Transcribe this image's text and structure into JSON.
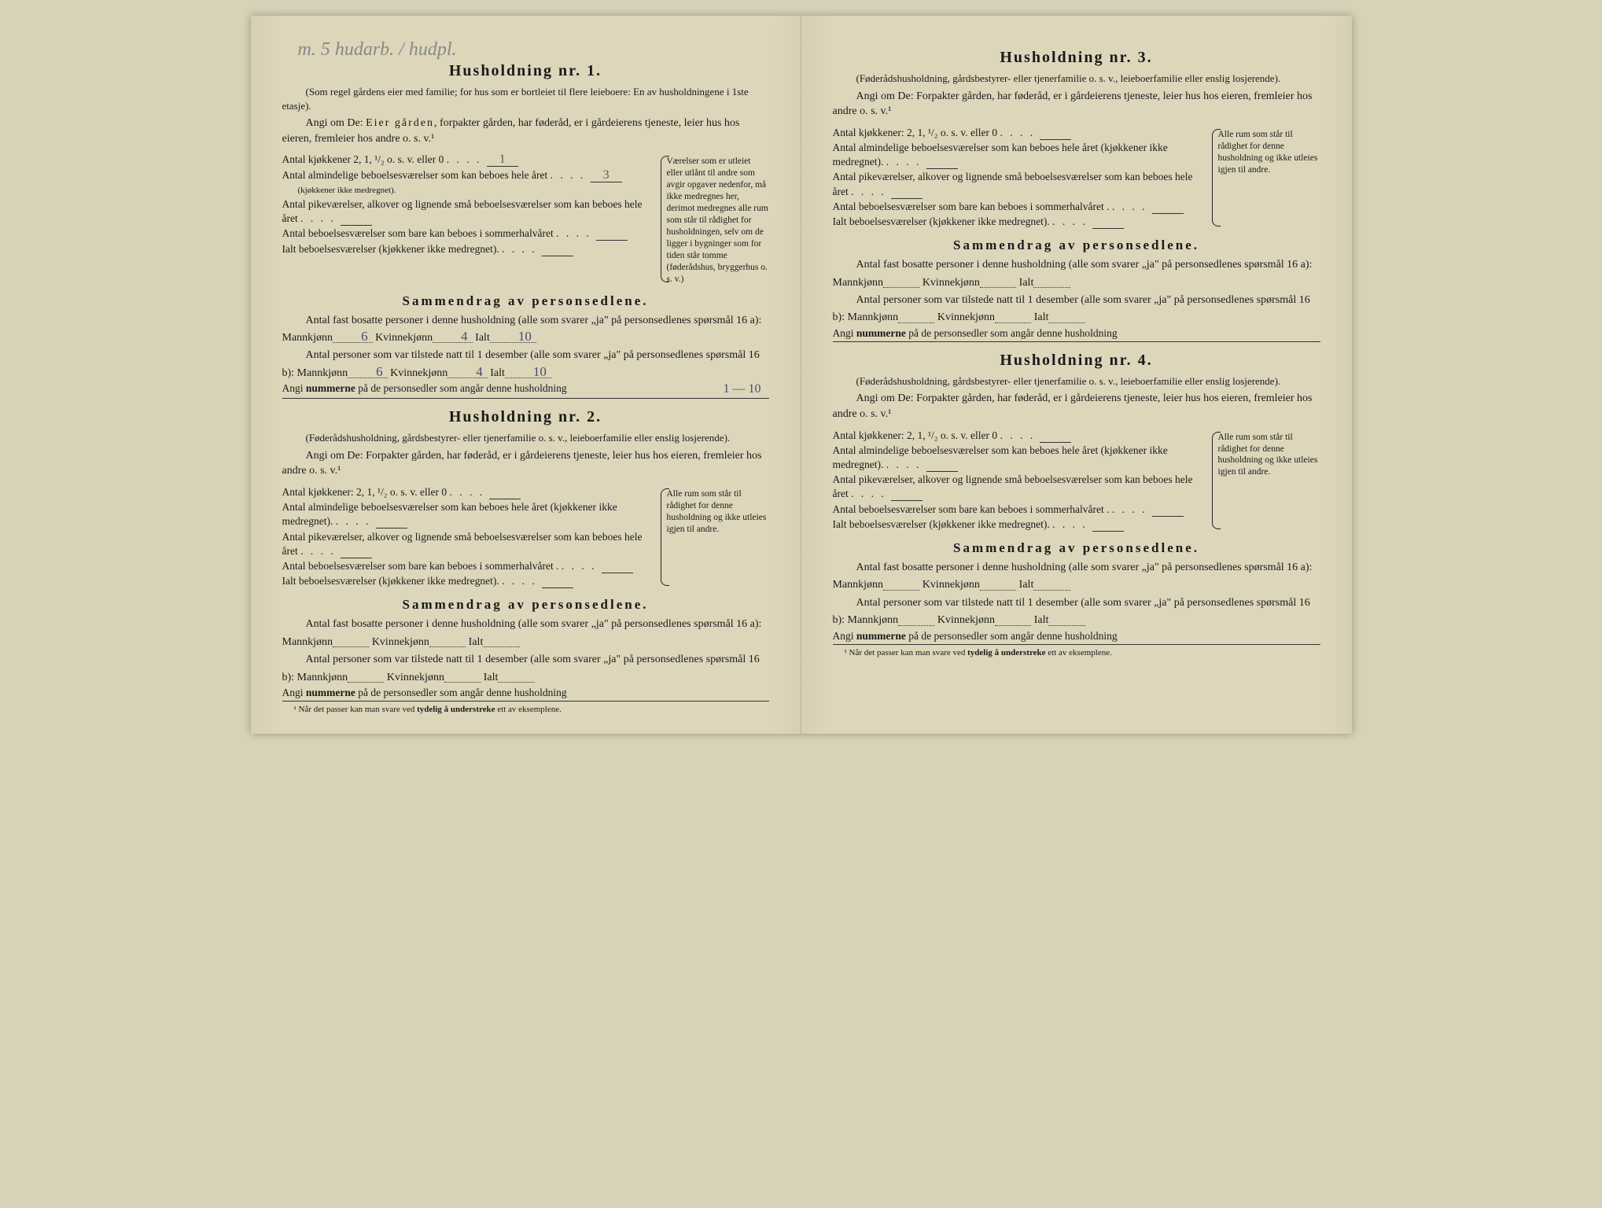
{
  "handwriting_top": "m. 5 hudarb. / hudpl.",
  "households": [
    {
      "title": "Husholdning nr. 1.",
      "subtitle": "(Som regel gårdens eier med familie; for hus som er bortleiet til flere leieboere: En av husholdningene i 1ste etasje).",
      "angi": "Angi om De: Eier gården, forpakter gården, har føderåd, er i gårdeierens tjeneste, leier hus hos eieren, fremleier hos andre o. s. v.¹",
      "rows": [
        {
          "label": "Antal kjøkkener 2, 1, ¹/₂ o. s. v. eller 0",
          "value": "1"
        },
        {
          "label": "Antal almindelige beboelsesværelser som kan beboes hele året",
          "sublabel": "(kjøkkener ikke medregnet).",
          "value": "3"
        },
        {
          "label": "Antal pikeværelser, alkover og lignende små beboelsesværelser som kan beboes hele året",
          "value": ""
        },
        {
          "label": "Antal beboelsesværelser som bare kan beboes i sommerhalvåret",
          "value": ""
        },
        {
          "label": "Ialt beboelsesværelser (kjøkkener ikke medregnet).",
          "value": ""
        }
      ],
      "sidenote": "Værelser som er utleiet eller utlånt til andre som avgir opgaver nedenfor, må ikke medregnes her, derimot medregnes alle rum som står til rådighet for husholdningen, selv om de ligger i bygninger som for tiden står tomme (føderådshus, bryggerhus o. s. v.)",
      "summary_title": "Sammendrag av personsedlene.",
      "summary_a_intro": "Antal fast bosatte personer i denne husholdning (alle som svarer „ja\" på personsedlenes spørsmål 16 a):",
      "summary_b_intro": "Antal personer som var tilstede natt til 1 desember (alle som svarer „ja\" på personsedlenes spørsmål 16 b):",
      "a_mann": "6",
      "a_kvinne": "4",
      "a_ialt": "10",
      "b_mann": "6",
      "b_kvinne": "4",
      "b_ialt": "10",
      "angi_num_label": "Angi nummerne på de personsedler som angår denne husholdning",
      "angi_num_value": "1 — 10"
    },
    {
      "title": "Husholdning nr. 2.",
      "subtitle": "(Føderådshusholdning, gårdsbestyrer- eller tjenerfamilie o. s. v., leieboerfamilie eller enslig losjerende).",
      "angi": "Angi om De: Forpakter gården, har føderåd, er i gårdeierens tjeneste, leier hus hos eieren, fremleier hos andre o. s. v.¹",
      "rows": [
        {
          "label": "Antal kjøkkener: 2, 1, ¹/₂ o. s. v. eller 0",
          "value": ""
        },
        {
          "label": "Antal almindelige beboelsesværelser som kan beboes hele året (kjøkkener ikke medregnet).",
          "value": ""
        },
        {
          "label": "Antal pikeværelser, alkover og lignende små beboelsesværelser som kan beboes hele året",
          "value": ""
        },
        {
          "label": "Antal beboelsesværelser som bare kan beboes i sommerhalvåret .",
          "value": ""
        },
        {
          "label": "Ialt beboelsesværelser (kjøkkener ikke medregnet).",
          "value": ""
        }
      ],
      "sidenote": "Alle rum som står til rådighet for denne husholdning og ikke utleies igjen til andre.",
      "summary_title": "Sammendrag av personsedlene.",
      "summary_a_intro": "Antal fast bosatte personer i denne husholdning (alle som svarer „ja\" på personsedlenes spørsmål 16 a):",
      "summary_b_intro": "Antal personer som var tilstede natt til 1 desember (alle som svarer „ja\" på personsedlenes spørsmål 16 b):",
      "a_mann": "",
      "a_kvinne": "",
      "a_ialt": "",
      "b_mann": "",
      "b_kvinne": "",
      "b_ialt": "",
      "angi_num_label": "Angi nummerne på de personsedler som angår denne husholdning",
      "angi_num_value": "",
      "footnote": "¹ Når det passer kan man svare ved tydelig å understreke ett av eksemplene."
    },
    {
      "title": "Husholdning nr. 3.",
      "subtitle": "(Føderådshusholdning, gårdsbestyrer- eller tjenerfamilie o. s. v., leieboerfamilie eller enslig losjerende).",
      "angi": "Angi om De: Forpakter gården, har føderåd, er i gårdeierens tjeneste, leier hus hos eieren, fremleier hos andre o. s. v.¹",
      "rows": [
        {
          "label": "Antal kjøkkener: 2, 1, ¹/₂ o. s. v. eller 0",
          "value": ""
        },
        {
          "label": "Antal almindelige beboelsesværelser som kan beboes hele året (kjøkkener ikke medregnet).",
          "value": ""
        },
        {
          "label": "Antal pikeværelser, alkover og lignende små beboelsesværelser som kan beboes hele året",
          "value": ""
        },
        {
          "label": "Antal beboelsesværelser som bare kan beboes i sommerhalvåret .",
          "value": ""
        },
        {
          "label": "Ialt beboelsesværelser (kjøkkener ikke medregnet).",
          "value": ""
        }
      ],
      "sidenote": "Alle rum som står til rådighet for denne husholdning og ikke utleies igjen til andre.",
      "summary_title": "Sammendrag av personsedlene.",
      "summary_a_intro": "Antal fast bosatte personer i denne husholdning (alle som svarer „ja\" på personsedlenes spørsmål 16 a):",
      "summary_b_intro": "Antal personer som var tilstede natt til 1 desember (alle som svarer „ja\" på personsedlenes spørsmål 16 b):",
      "a_mann": "",
      "a_kvinne": "",
      "a_ialt": "",
      "b_mann": "",
      "b_kvinne": "",
      "b_ialt": "",
      "angi_num_label": "Angi nummerne på de personsedler som angår denne husholdning",
      "angi_num_value": ""
    },
    {
      "title": "Husholdning nr. 4.",
      "subtitle": "(Føderådshusholdning, gårdsbestyrer- eller tjenerfamilie o. s. v., leieboerfamilie eller enslig losjerende).",
      "angi": "Angi om De: Forpakter gården, har føderåd, er i gårdeierens tjeneste, leier hus hos eieren, fremleier hos andre o. s. v.¹",
      "rows": [
        {
          "label": "Antal kjøkkener: 2, 1, ¹/₂ o. s. v. eller 0",
          "value": ""
        },
        {
          "label": "Antal almindelige beboelsesværelser som kan beboes hele året (kjøkkener ikke medregnet).",
          "value": ""
        },
        {
          "label": "Antal pikeværelser, alkover og lignende små beboelsesværelser som kan beboes hele året",
          "value": ""
        },
        {
          "label": "Antal beboelsesværelser som bare kan beboes i sommerhalvåret .",
          "value": ""
        },
        {
          "label": "Ialt beboelsesværelser (kjøkkener ikke medregnet).",
          "value": ""
        }
      ],
      "sidenote": "Alle rum som står til rådighet for denne husholdning og ikke utleies igjen til andre.",
      "summary_title": "Sammendrag av personsedlene.",
      "summary_a_intro": "Antal fast bosatte personer i denne husholdning (alle som svarer „ja\" på personsedlenes spørsmål 16 a):",
      "summary_b_intro": "Antal personer som var tilstede natt til 1 desember (alle som svarer „ja\" på personsedlenes spørsmål 16 b):",
      "a_mann": "",
      "a_kvinne": "",
      "a_ialt": "",
      "b_mann": "",
      "b_kvinne": "",
      "b_ialt": "",
      "angi_num_label": "Angi nummerne på de personsedler som angår denne husholdning",
      "angi_num_value": "",
      "footnote": "¹ Når det passer kan man svare ved tydelig å understreke ett av eksemplene."
    }
  ],
  "labels": {
    "mann": "Mannkjønn",
    "kvinne": "Kvinnekjønn",
    "ialt": "Ialt"
  }
}
